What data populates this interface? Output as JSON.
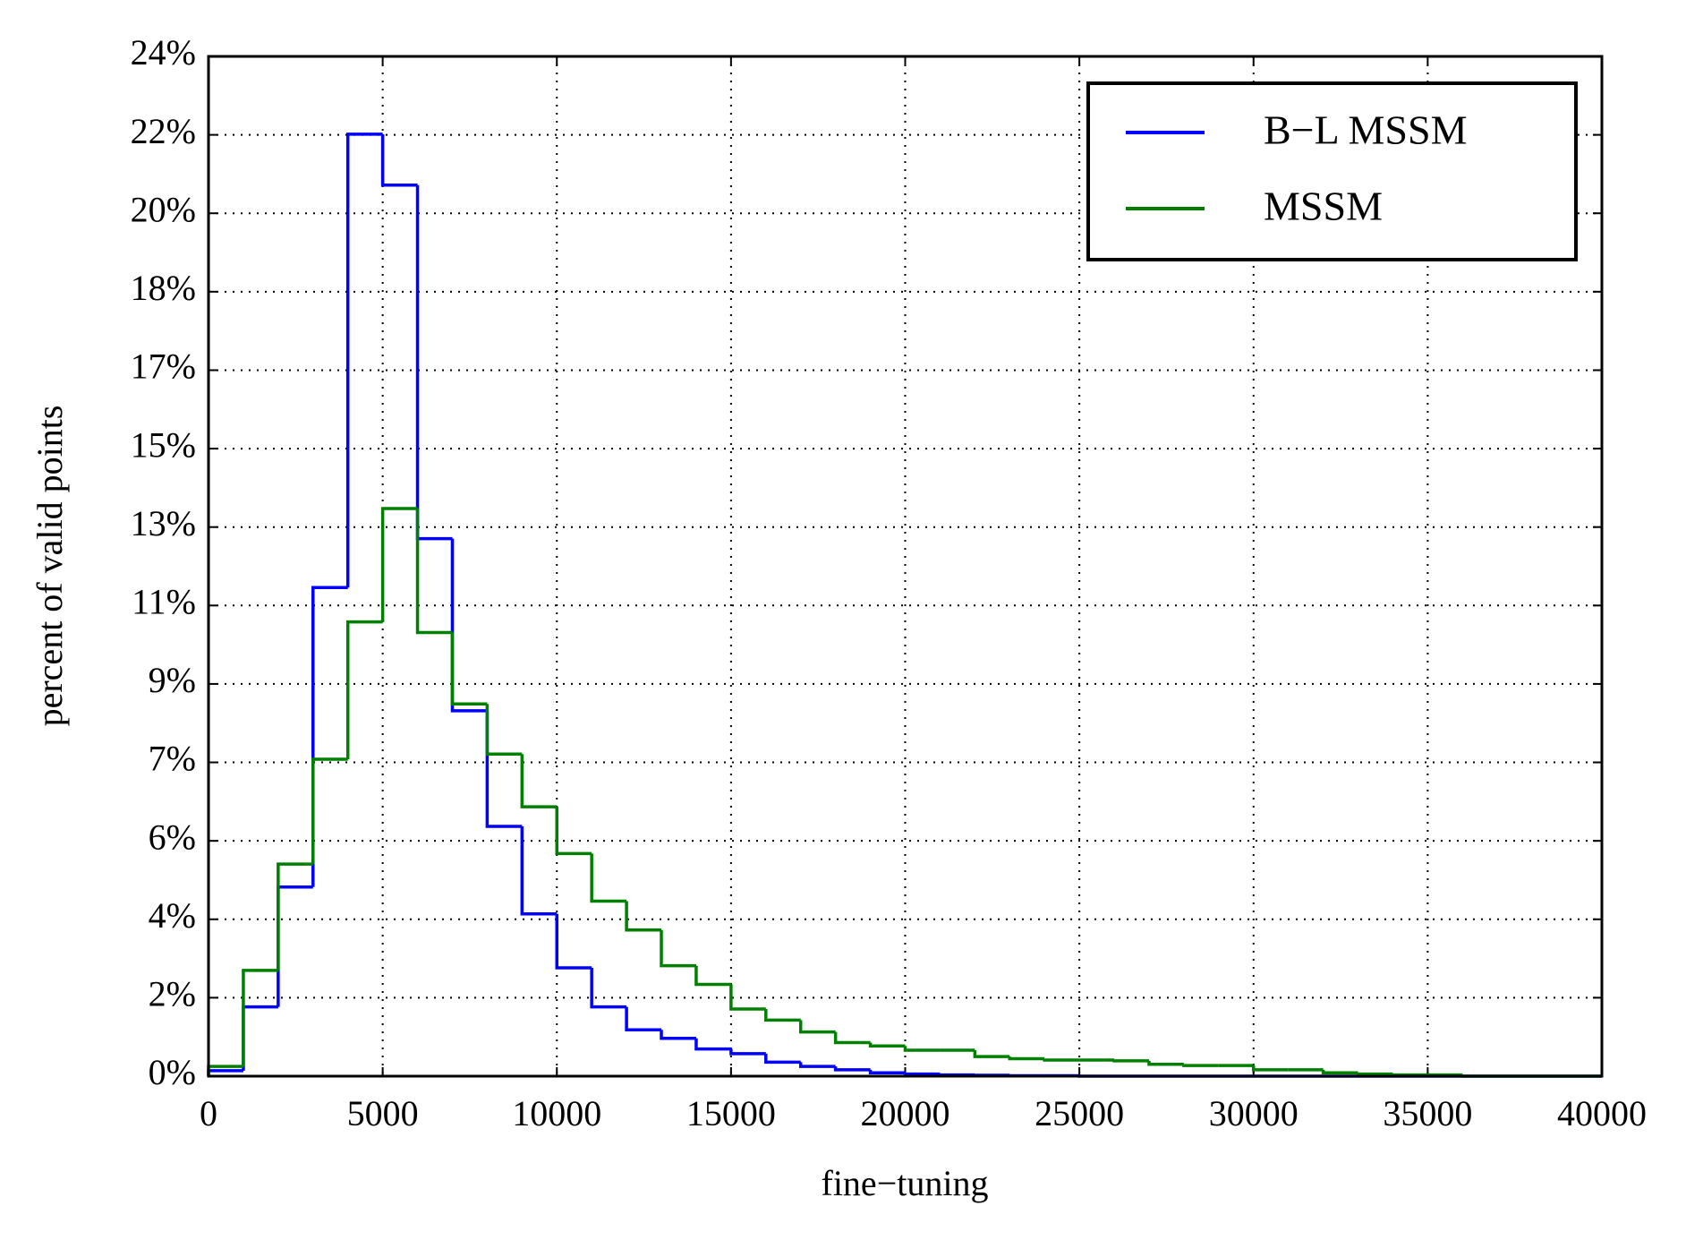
{
  "chart_data": {
    "type": "histogram",
    "xlabel": "fine−tuning",
    "ylabel": "percent of valid points",
    "bins": [
      0,
      1000,
      2000,
      3000,
      4000,
      5000,
      6000,
      7000,
      8000,
      9000,
      10000,
      11000,
      12000,
      13000,
      14000,
      15000,
      16000,
      17000,
      18000,
      19000,
      20000,
      21000,
      22000,
      23000,
      24000,
      25000,
      26000,
      27000,
      28000,
      29000,
      30000,
      31000,
      32000,
      33000,
      34000,
      35000,
      36000,
      37000,
      38000,
      39000,
      40000
    ],
    "series": [
      {
        "name": "B−L MSSM",
        "color": "#0000ff",
        "values": [
          0.13,
          1.63,
          4.45,
          11.5,
          22.17,
          20.97,
          12.65,
          8.6,
          5.88,
          3.82,
          2.55,
          1.63,
          1.09,
          0.89,
          0.64,
          0.53,
          0.33,
          0.23,
          0.15,
          0.08,
          0.05,
          0.03,
          0.02,
          0.01,
          0.01,
          0,
          0,
          0,
          0,
          0,
          0,
          0,
          0,
          0,
          0,
          0,
          0,
          0,
          0,
          0
        ]
      },
      {
        "name": "MSSM",
        "color": "#008000",
        "values": [
          0.23,
          2.49,
          4.99,
          7.46,
          10.69,
          13.36,
          10.44,
          8.76,
          7.58,
          6.34,
          5.24,
          4.12,
          3.44,
          2.6,
          2.16,
          1.58,
          1.32,
          1.04,
          0.79,
          0.71,
          0.61,
          0.61,
          0.46,
          0.41,
          0.38,
          0.38,
          0.36,
          0.28,
          0.25,
          0.25,
          0.15,
          0.15,
          0.08,
          0.05,
          0.03,
          0.03,
          0,
          0,
          0,
          0
        ]
      }
    ],
    "xlim": [
      0,
      40000
    ],
    "xticks": [
      0,
      5000,
      10000,
      15000,
      20000,
      25000,
      30000,
      35000,
      40000
    ],
    "ylim": [
      0,
      24
    ],
    "yticks": [
      {
        "value": 0,
        "label": "0%"
      },
      {
        "value": 1.846,
        "label": "2%"
      },
      {
        "value": 3.692,
        "label": "4%"
      },
      {
        "value": 5.538,
        "label": "6%"
      },
      {
        "value": 7.385,
        "label": "7%"
      },
      {
        "value": 9.231,
        "label": "9%"
      },
      {
        "value": 11.077,
        "label": "11%"
      },
      {
        "value": 12.923,
        "label": "13%"
      },
      {
        "value": 14.769,
        "label": "15%"
      },
      {
        "value": 16.615,
        "label": "17%"
      },
      {
        "value": 18.462,
        "label": "18%"
      },
      {
        "value": 20.308,
        "label": "20%"
      },
      {
        "value": 22.154,
        "label": "22%"
      },
      {
        "value": 24,
        "label": "24%"
      }
    ],
    "grid": true,
    "legend": "upper right"
  }
}
